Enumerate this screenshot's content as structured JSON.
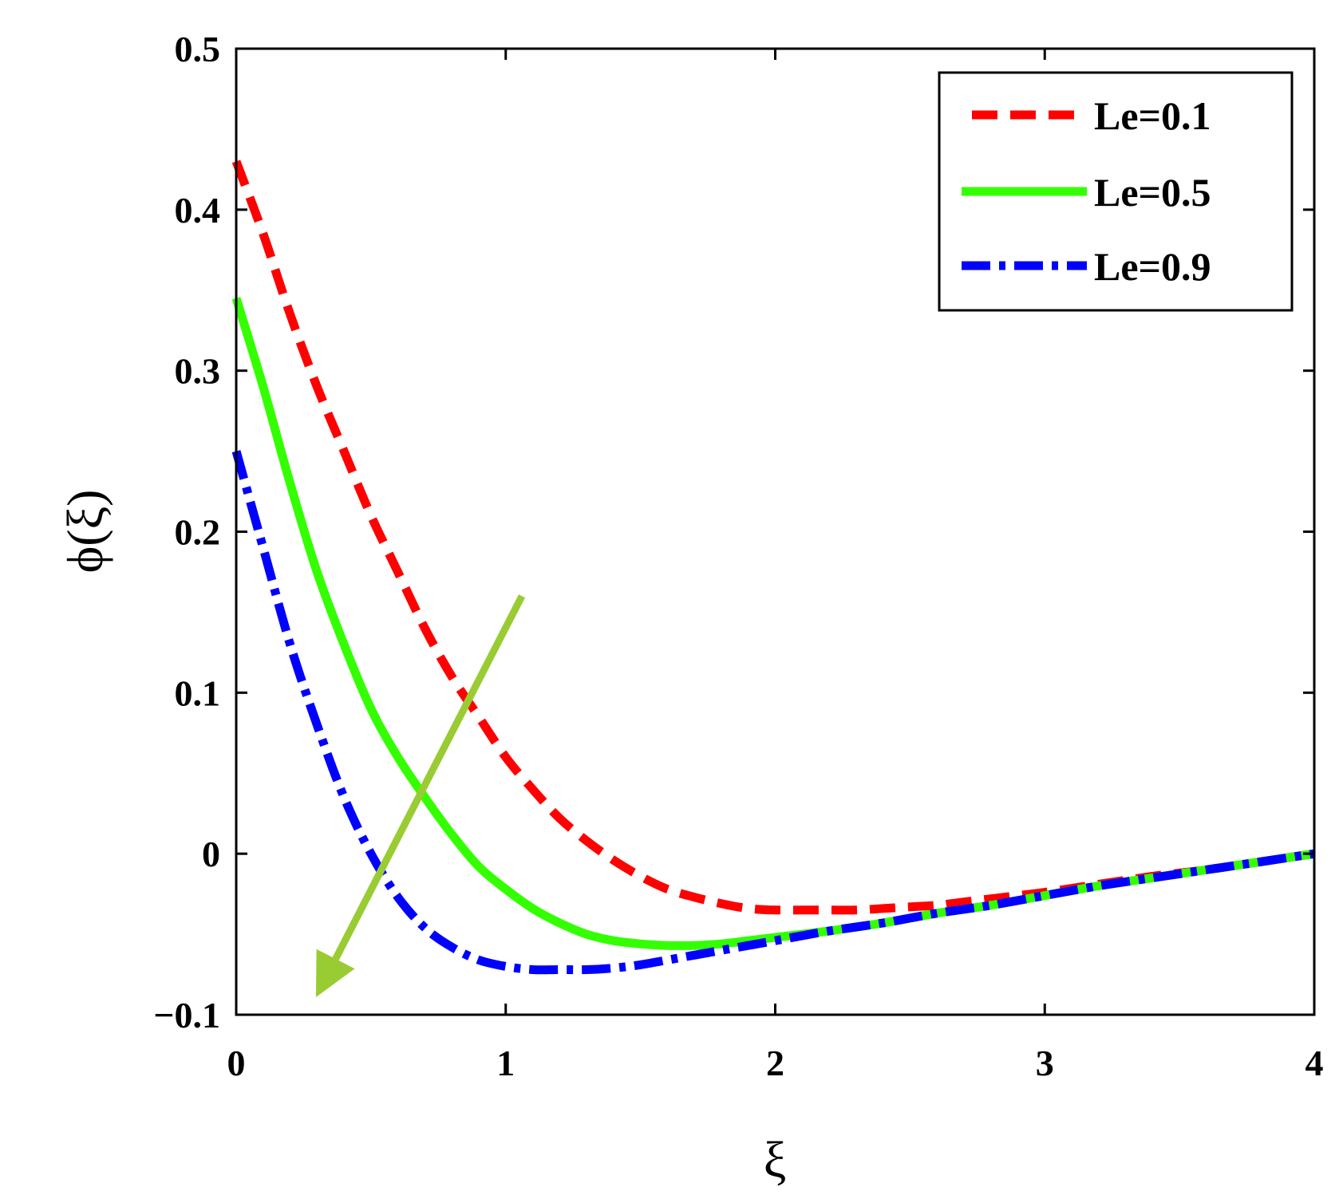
{
  "chart_data": {
    "type": "line",
    "xlabel": "ξ",
    "ylabel": "ϕ(ξ)",
    "xlim": [
      0,
      4
    ],
    "ylim": [
      -0.1,
      0.5
    ],
    "xticks": [
      0,
      1,
      2,
      3,
      4
    ],
    "xtick_labels": [
      "0",
      "1",
      "2",
      "3",
      "4"
    ],
    "yticks": [
      -0.1,
      0,
      0.1,
      0.2,
      0.3,
      0.4,
      0.5
    ],
    "ytick_labels": [
      "−0.1",
      "0",
      "0.1",
      "0.2",
      "0.3",
      "0.4",
      "0.5"
    ],
    "grid": false,
    "legend_position": "top-right",
    "series": [
      {
        "name": "Le=0.1",
        "color": "#ff0000",
        "style": "dashed",
        "x": [
          0,
          0.1,
          0.2,
          0.3,
          0.4,
          0.5,
          0.6,
          0.7,
          0.8,
          0.9,
          1.0,
          1.1,
          1.2,
          1.3,
          1.4,
          1.5,
          1.6,
          1.7,
          1.8,
          1.9,
          2.0,
          2.1,
          2.2,
          2.3,
          2.4,
          2.5,
          2.6,
          2.7,
          2.8,
          2.9,
          3.0,
          3.2,
          3.4,
          3.6,
          3.8,
          4.0
        ],
        "y": [
          0.43,
          0.385,
          0.335,
          0.29,
          0.25,
          0.21,
          0.175,
          0.14,
          0.11,
          0.085,
          0.06,
          0.04,
          0.022,
          0.008,
          -0.004,
          -0.014,
          -0.022,
          -0.027,
          -0.031,
          -0.034,
          -0.035,
          -0.035,
          -0.035,
          -0.035,
          -0.034,
          -0.033,
          -0.032,
          -0.03,
          -0.028,
          -0.026,
          -0.024,
          -0.019,
          -0.014,
          -0.01,
          -0.005,
          0
        ]
      },
      {
        "name": "Le=0.5",
        "color": "#33ff00",
        "style": "solid",
        "x": [
          0,
          0.1,
          0.2,
          0.3,
          0.4,
          0.5,
          0.6,
          0.7,
          0.8,
          0.9,
          1.0,
          1.1,
          1.2,
          1.3,
          1.4,
          1.5,
          1.6,
          1.7,
          1.8,
          1.9,
          2.0,
          2.2,
          2.4,
          2.6,
          2.8,
          3.0,
          3.2,
          3.4,
          3.6,
          3.8,
          4.0
        ],
        "y": [
          0.345,
          0.29,
          0.23,
          0.175,
          0.13,
          0.09,
          0.06,
          0.035,
          0.012,
          -0.008,
          -0.022,
          -0.034,
          -0.043,
          -0.05,
          -0.054,
          -0.056,
          -0.057,
          -0.057,
          -0.056,
          -0.054,
          -0.052,
          -0.048,
          -0.043,
          -0.037,
          -0.032,
          -0.026,
          -0.02,
          -0.015,
          -0.01,
          -0.005,
          0
        ]
      },
      {
        "name": "Le=0.9",
        "color": "#0000ff",
        "style": "dashdot",
        "x": [
          0,
          0.1,
          0.2,
          0.3,
          0.4,
          0.5,
          0.6,
          0.7,
          0.8,
          0.9,
          1.0,
          1.1,
          1.2,
          1.3,
          1.4,
          1.5,
          1.6,
          1.7,
          1.8,
          1.9,
          2.0,
          2.2,
          2.4,
          2.6,
          2.8,
          3.0,
          3.2,
          3.4,
          3.6,
          3.8,
          4.0
        ],
        "y": [
          0.25,
          0.19,
          0.13,
          0.08,
          0.035,
          0.0,
          -0.027,
          -0.046,
          -0.058,
          -0.066,
          -0.07,
          -0.072,
          -0.072,
          -0.072,
          -0.071,
          -0.069,
          -0.066,
          -0.063,
          -0.06,
          -0.057,
          -0.054,
          -0.048,
          -0.043,
          -0.037,
          -0.032,
          -0.026,
          -0.02,
          -0.015,
          -0.01,
          -0.005,
          0
        ]
      }
    ],
    "annotations": [
      {
        "type": "arrow",
        "color": "#99cc33",
        "from": [
          1.06,
          0.16
        ],
        "to": [
          0.33,
          -0.078
        ]
      }
    ]
  }
}
